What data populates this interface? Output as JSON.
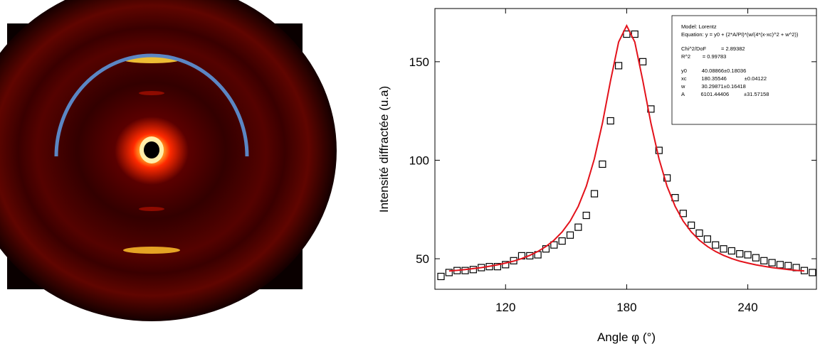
{
  "chart_data": {
    "type": "scatter",
    "x_label": "Angle φ (°)",
    "y_label": "Intensité diffractée (u.a)",
    "xlim": [
      85,
      274
    ],
    "ylim": [
      34.5,
      177
    ],
    "xticks": [
      120,
      180,
      240
    ],
    "yticks": [
      50,
      100,
      150
    ],
    "annotations": [
      "Model: Lorentz",
      "Equation: y = y0 + (2*A/PI)*(w/(4*(x-xc)^2 + w^2))",
      "Chi^2/DoF          = 2.89382",
      "R^2        = 0.99783",
      "y0          40.08866±0.18036",
      "xc          180.35546            ±0.04122",
      "w           30.29871±0.16418",
      "A           6101.44406          ±31.57158"
    ],
    "series": [
      {
        "type": "scatter",
        "color": "#000000",
        "x": [
          88,
          92,
          96,
          100,
          104,
          108,
          112,
          116,
          120,
          124,
          128,
          132,
          136,
          140,
          144,
          148,
          152,
          156,
          160,
          164,
          168,
          172,
          176,
          180,
          184,
          188,
          192,
          196,
          200,
          204,
          208,
          212,
          216,
          220,
          224,
          228,
          232,
          236,
          240,
          244,
          248,
          252,
          256,
          260,
          264,
          268,
          272
        ],
        "values": [
          41,
          43,
          44,
          44,
          44.5,
          45.5,
          46,
          46,
          47,
          49,
          51.5,
          51.5,
          52,
          55,
          57,
          59,
          62,
          66,
          72,
          83,
          98,
          120,
          148,
          164,
          164,
          150,
          126,
          105,
          91,
          81,
          73,
          67,
          63,
          60,
          57,
          55,
          54,
          52.5,
          52,
          50.5,
          49,
          48,
          47,
          46.5,
          45.5,
          44,
          43
        ]
      },
      {
        "type": "line",
        "color": "#e3121b",
        "x": [
          92,
          96,
          100,
          104,
          108,
          112,
          116,
          120,
          124,
          128,
          132,
          136,
          140,
          144,
          148,
          152,
          156,
          160,
          164,
          168,
          172,
          176,
          180,
          184,
          188,
          192,
          196,
          200,
          204,
          208,
          212,
          216,
          220,
          224,
          228,
          232,
          236,
          240,
          244,
          248,
          252,
          256,
          260,
          264,
          268
        ],
        "values": [
          43.8,
          44.1,
          44.5,
          45.0,
          45.5,
          46.2,
          46.9,
          47.8,
          48.8,
          50.1,
          51.7,
          53.7,
          56.2,
          59.4,
          63.6,
          69.1,
          76.6,
          86.8,
          100.7,
          118.9,
          140.3,
          160.0,
          168.3,
          160.0,
          140.3,
          118.9,
          100.7,
          86.8,
          76.6,
          69.1,
          63.6,
          59.4,
          56.2,
          53.7,
          51.7,
          50.1,
          48.8,
          47.8,
          46.9,
          46.2,
          45.5,
          45.0,
          44.5,
          44.1,
          43.8
        ]
      }
    ]
  }
}
